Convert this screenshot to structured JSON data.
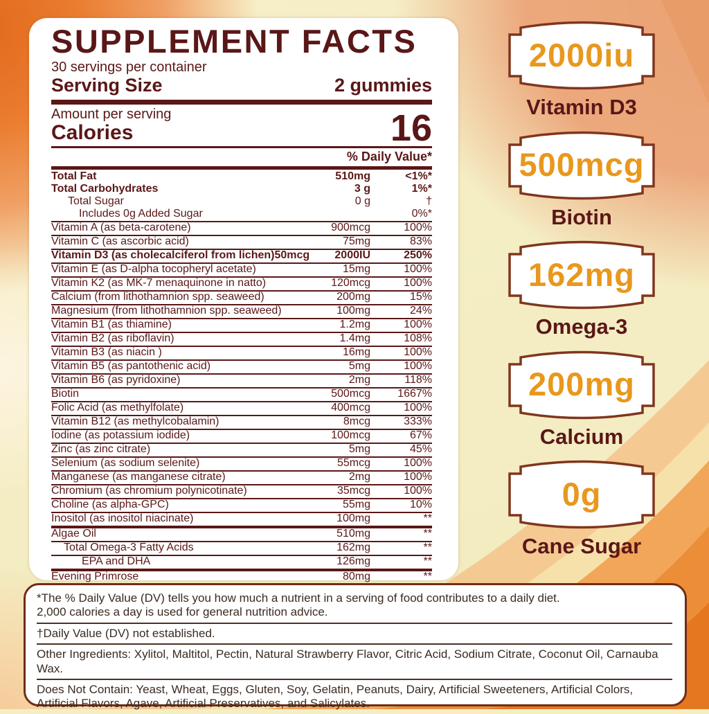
{
  "facts": {
    "title": "SUPPLEMENT FACTS",
    "servings_per_container": "30 servings per container",
    "serving_size_label": "Serving Size",
    "serving_size_value": "2 gummies",
    "amount_per_serving_label": "Amount per serving",
    "calories_label": "Calories",
    "calories_value": "16",
    "daily_value_header": "% Daily Value*",
    "rows": [
      {
        "name": "Total Fat",
        "amount": "510mg",
        "dv": "<1%*",
        "bold": true,
        "sep": "none"
      },
      {
        "name": "Total Carbohydrates",
        "amount": "3 g",
        "dv": "1%*",
        "bold": true,
        "sep": "none"
      },
      {
        "name": "Total Sugar",
        "amount": "0 g",
        "dv": "†",
        "indent": 24,
        "sep": "none"
      },
      {
        "name": "Includes 0g Added Sugar",
        "amount": "",
        "dv": "0%*",
        "indent": 40,
        "sep": "thin"
      },
      {
        "name": "Vitamin A (as beta-carotene)",
        "amount": "900mcg",
        "dv": "100%",
        "sep": "thin"
      },
      {
        "name": "Vitamin C (as ascorbic acid)",
        "amount": "75mg",
        "dv": "83%",
        "sep": "thin"
      },
      {
        "name": "Vitamin D3 (as cholecalciferol from lichen)50mcg",
        "amount": "2000IU",
        "dv": "250%",
        "bold": true,
        "sep": "thin"
      },
      {
        "name": "Vitamin E (as D-alpha tocopheryl acetate)",
        "amount": "15mg",
        "dv": "100%",
        "sep": "thin"
      },
      {
        "name": "Vitamin K2 (as MK-7 menaquinone in natto)",
        "amount": "120mcg",
        "dv": "100%",
        "sep": "thin"
      },
      {
        "name": "Calcium (from lithothamnion spp. seaweed)",
        "amount": "200mg",
        "dv": "15%",
        "sep": "thin"
      },
      {
        "name": "Magnesium (from lithothamnion spp. seaweed)",
        "amount": "100mg",
        "dv": "24%",
        "sep": "thin"
      },
      {
        "name": "Vitamin B1 (as thiamine)",
        "amount": "1.2mg",
        "dv": "100%",
        "sep": "thin"
      },
      {
        "name": "Vitamin B2 (as riboflavin)",
        "amount": "1.4mg",
        "dv": "108%",
        "sep": "thin"
      },
      {
        "name": "Vitamin B3 (as niacin )",
        "amount": "16mg",
        "dv": "100%",
        "sep": "thin"
      },
      {
        "name": "Vitamin B5 (as pantothenic acid)",
        "amount": "5mg",
        "dv": "100%",
        "sep": "thin"
      },
      {
        "name": "Vitamin B6 (as pyridoxine)",
        "amount": "2mg",
        "dv": "118%",
        "sep": "thin"
      },
      {
        "name": "Biotin",
        "amount": "500mcg",
        "dv": "1667%",
        "sep": "thin"
      },
      {
        "name": "Folic Acid (as methylfolate)",
        "amount": "400mcg",
        "dv": "100%",
        "sep": "thin"
      },
      {
        "name": "Vitamin B12 (as methylcobalamin)",
        "amount": "8mcg",
        "dv": "333%",
        "sep": "thin"
      },
      {
        "name": "Iodine (as potassium iodide)",
        "amount": "100mcg",
        "dv": "67%",
        "sep": "thin"
      },
      {
        "name": "Zinc (as zinc citrate)",
        "amount": "5mg",
        "dv": "45%",
        "sep": "thin"
      },
      {
        "name": "Selenium (as sodium selenite)",
        "amount": "55mcg",
        "dv": "100%",
        "sep": "thin"
      },
      {
        "name": "Manganese (as manganese citrate)",
        "amount": "2mg",
        "dv": "100%",
        "sep": "thin"
      },
      {
        "name": "Chromium (as chromium polynicotinate)",
        "amount": "35mcg",
        "dv": "100%",
        "sep": "thin"
      },
      {
        "name": "Choline (as alpha-GPC)",
        "amount": "55mg",
        "dv": "10%",
        "sep": "thin"
      },
      {
        "name": "Inositol (as inositol niacinate)",
        "amount": "100mg",
        "dv": "**",
        "sep": "thick"
      },
      {
        "name": "Algae Oil",
        "amount": "510mg",
        "dv": "**",
        "sep": "thin"
      },
      {
        "name": "Total Omega-3 Fatty Acids",
        "amount": "162mg",
        "dv": "**",
        "indent": 18,
        "sep": "thin"
      },
      {
        "name": "EPA and DHA",
        "amount": "126mg",
        "dv": "**",
        "indent": 44,
        "sep": "thick"
      },
      {
        "name": "Evening Primrose",
        "amount": "80mg",
        "dv": "**",
        "sep": "none"
      }
    ]
  },
  "badges": [
    {
      "value": "2000iu",
      "label": "Vitamin D3"
    },
    {
      "value": "500mcg",
      "label": "Biotin"
    },
    {
      "value": "162mg",
      "label": "Omega-3"
    },
    {
      "value": "200mg",
      "label": "Calcium"
    },
    {
      "value": "0g",
      "label": "Cane Sugar"
    }
  ],
  "footnotes": [
    "*The % Daily Value (DV) tells you how much a nutrient in a serving of food contributes to a daily diet.\n2,000 calories a day is used for general nutrition advice.",
    "†Daily Value (DV) not established.",
    "Other Ingredients: Xylitol, Maltitol, Pectin, Natural Strawberry Flavor, Citric Acid, Sodium Citrate, Coconut Oil, Carnauba Wax.",
    "Does Not Contain: Yeast, Wheat, Eggs, Gluten, Soy, Gelatin, Peanuts, Dairy, Artificial Sweeteners, Artificial Colors, Artificial Flavors, Agave, Artificial Preservatives, and Salicylates."
  ],
  "colors": {
    "text_maroon": "#5a1717",
    "value_orange": "#e8981d",
    "badge_border": "#80361d",
    "footnote_border": "#6e2d18",
    "footnote_text": "#3a2b21",
    "background_cream": "#f5eec5",
    "background_orange": "#e4701f"
  }
}
